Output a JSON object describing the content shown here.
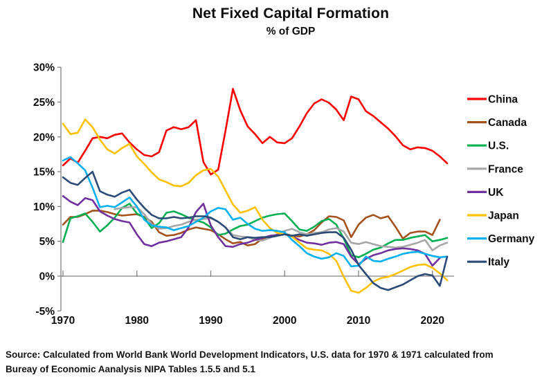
{
  "chart_data": {
    "type": "line",
    "title": "Net Fixed Capital Formation",
    "subtitle": "% of GDP",
    "xlabel": "",
    "ylabel": "% of GDP",
    "axis_color": "#808080",
    "text_color": "#0d0d0d",
    "grid": "zero-line-only",
    "legend_position": "right",
    "x_axis": {
      "ticks": [
        1970,
        1980,
        1990,
        2000,
        2010,
        2020
      ],
      "range": [
        1970,
        2022
      ]
    },
    "y_axis": {
      "tick_labels": [
        "30%",
        "25%",
        "20%",
        "15%",
        "10%",
        "5%",
        "0%",
        "-5%"
      ],
      "tick_values": [
        30,
        25,
        20,
        15,
        10,
        5,
        0,
        -5
      ],
      "range": [
        -5,
        30
      ]
    },
    "series": [
      {
        "name": "China",
        "color": "#FF0000",
        "start_year": 1970,
        "values": [
          15.9,
          16.9,
          16.3,
          18.0,
          19.8,
          20.0,
          19.8,
          20.3,
          20.5,
          19.2,
          18.2,
          17.4,
          17.2,
          17.8,
          20.9,
          21.4,
          21.1,
          21.4,
          22.4,
          16.4,
          14.6,
          15.3,
          20.9,
          26.9,
          23.8,
          21.5,
          20.4,
          19.1,
          20.0,
          19.2,
          19.1,
          19.8,
          21.5,
          23.4,
          24.8,
          25.4,
          24.9,
          23.9,
          22.4,
          25.8,
          25.4,
          23.7,
          23.0,
          22.1,
          21.2,
          20.1,
          18.8,
          18.2,
          18.5,
          18.4,
          18.0,
          17.2,
          16.2
        ]
      },
      {
        "name": "Canada",
        "color": "#A5511D",
        "start_year": 1970,
        "values": [
          7.4,
          8.5,
          8.5,
          8.9,
          9.4,
          9.4,
          9.2,
          8.9,
          8.7,
          8.8,
          8.9,
          8.5,
          7.8,
          6.3,
          5.8,
          5.9,
          6.2,
          6.7,
          7.0,
          6.8,
          6.6,
          6.0,
          5.3,
          4.7,
          4.9,
          4.4,
          4.6,
          5.4,
          5.6,
          5.8,
          6.1,
          5.8,
          5.7,
          6.0,
          6.6,
          7.7,
          8.6,
          8.5,
          8.0,
          5.6,
          7.4,
          8.4,
          8.8,
          8.3,
          8.6,
          7.1,
          5.4,
          6.2,
          6.4,
          6.4,
          5.9,
          8.1
        ]
      },
      {
        "name": "U.S.",
        "color": "#00B050",
        "start_year": 1970,
        "values": [
          4.9,
          8.3,
          8.6,
          9.0,
          7.8,
          6.4,
          7.3,
          8.4,
          9.8,
          10.4,
          9.0,
          8.4,
          6.9,
          7.6,
          9.1,
          9.3,
          8.9,
          8.4,
          8.0,
          7.7,
          7.0,
          5.9,
          6.1,
          6.7,
          7.2,
          7.4,
          7.9,
          8.4,
          8.7,
          8.9,
          9.0,
          7.9,
          6.7,
          6.5,
          7.1,
          7.9,
          8.2,
          7.4,
          5.4,
          3.0,
          2.7,
          3.2,
          3.8,
          4.1,
          4.7,
          5.2,
          5.2,
          5.5,
          5.7,
          5.9,
          5.0,
          5.2,
          5.5
        ]
      },
      {
        "name": "France",
        "color": "#A6A6A6",
        "start_year": 1977,
        "values": [
          9.6,
          9.8,
          9.9,
          9.9,
          8.9,
          7.5,
          6.8,
          6.9,
          7.2,
          7.4,
          7.8,
          8.1,
          8.2,
          8.3,
          7.8,
          7.0,
          5.9,
          5.7,
          5.6,
          5.2,
          5.1,
          5.5,
          6.0,
          6.5,
          6.8,
          6.3,
          6.0,
          6.2,
          6.3,
          6.7,
          6.9,
          6.4,
          4.8,
          4.6,
          4.9,
          4.6,
          4.3,
          4.2,
          4.1,
          4.2,
          4.5,
          4.8,
          5.2,
          3.7,
          4.4,
          4.8
        ]
      },
      {
        "name": "UK",
        "color": "#7030A0",
        "start_year": 1970,
        "values": [
          11.5,
          10.7,
          10.2,
          11.2,
          10.9,
          9.3,
          8.7,
          8.2,
          7.9,
          7.7,
          6.0,
          4.6,
          4.3,
          4.8,
          5.0,
          5.3,
          5.6,
          7.0,
          9.2,
          10.4,
          7.3,
          5.6,
          4.3,
          4.2,
          4.6,
          4.8,
          5.2,
          5.5,
          5.8,
          5.9,
          6.0,
          5.7,
          5.2,
          4.8,
          4.7,
          4.5,
          4.8,
          4.9,
          4.6,
          2.8,
          1.7,
          2.5,
          3.0,
          3.3,
          3.7,
          3.9,
          4.0,
          3.9,
          3.7,
          3.2,
          1.5,
          2.6
        ]
      },
      {
        "name": "Japan",
        "color": "#FFC000",
        "start_year": 1970,
        "values": [
          21.9,
          20.4,
          20.6,
          22.5,
          21.4,
          19.6,
          18.2,
          17.6,
          18.4,
          19.0,
          17.2,
          16.1,
          14.9,
          13.9,
          13.5,
          13.0,
          12.9,
          13.4,
          14.5,
          15.2,
          15.4,
          14.3,
          12.3,
          10.3,
          9.1,
          9.4,
          9.9,
          8.1,
          6.9,
          6.2,
          6.0,
          5.7,
          4.8,
          4.0,
          3.8,
          3.7,
          3.2,
          2.2,
          -0.1,
          -2.1,
          -2.4,
          -1.7,
          -0.8,
          -0.3,
          -0.1,
          0.3,
          0.8,
          1.3,
          1.6,
          1.7,
          1.2,
          0.4,
          -0.6
        ]
      },
      {
        "name": "Germany",
        "color": "#00B0F0",
        "start_year": 1970,
        "values": [
          16.6,
          17.1,
          16.2,
          15.2,
          12.7,
          9.9,
          10.1,
          9.9,
          10.6,
          11.3,
          10.0,
          8.1,
          7.3,
          7.1,
          7.0,
          6.6,
          6.9,
          7.2,
          7.8,
          8.4,
          9.3,
          9.8,
          9.6,
          8.1,
          8.4,
          7.5,
          6.8,
          6.5,
          6.6,
          6.5,
          6.3,
          5.2,
          4.3,
          3.3,
          2.8,
          2.5,
          2.7,
          3.3,
          2.9,
          1.4,
          1.5,
          2.8,
          2.2,
          2.1,
          2.5,
          2.8,
          3.2,
          3.4,
          3.5,
          3.2,
          2.9,
          2.7,
          2.8
        ]
      },
      {
        "name": "Italy",
        "color": "#2A4B78",
        "start_year": 1970,
        "values": [
          14.2,
          13.4,
          13.1,
          14.1,
          15.0,
          12.2,
          11.7,
          11.4,
          12.0,
          12.4,
          11.0,
          9.8,
          8.8,
          8.3,
          8.3,
          8.5,
          8.3,
          8.4,
          8.6,
          8.6,
          8.4,
          7.8,
          7.0,
          5.6,
          5.3,
          5.6,
          5.5,
          5.6,
          5.6,
          5.8,
          6.0,
          5.8,
          6.0,
          5.8,
          6.0,
          6.2,
          6.3,
          6.3,
          5.5,
          3.8,
          1.6,
          0.3,
          -1.0,
          -1.7,
          -2.0,
          -1.6,
          -1.2,
          -0.6,
          0.0,
          0.3,
          0.1,
          -1.4,
          2.8
        ]
      }
    ]
  },
  "source": {
    "line1": "Source:  Calculated from World Bank World Development Indicators, U.S. data for 1970 & 1971 calculated from",
    "line2": "Bureay of Economic Aanalysis NIPA Tables 1.5.5 and 5.1"
  }
}
